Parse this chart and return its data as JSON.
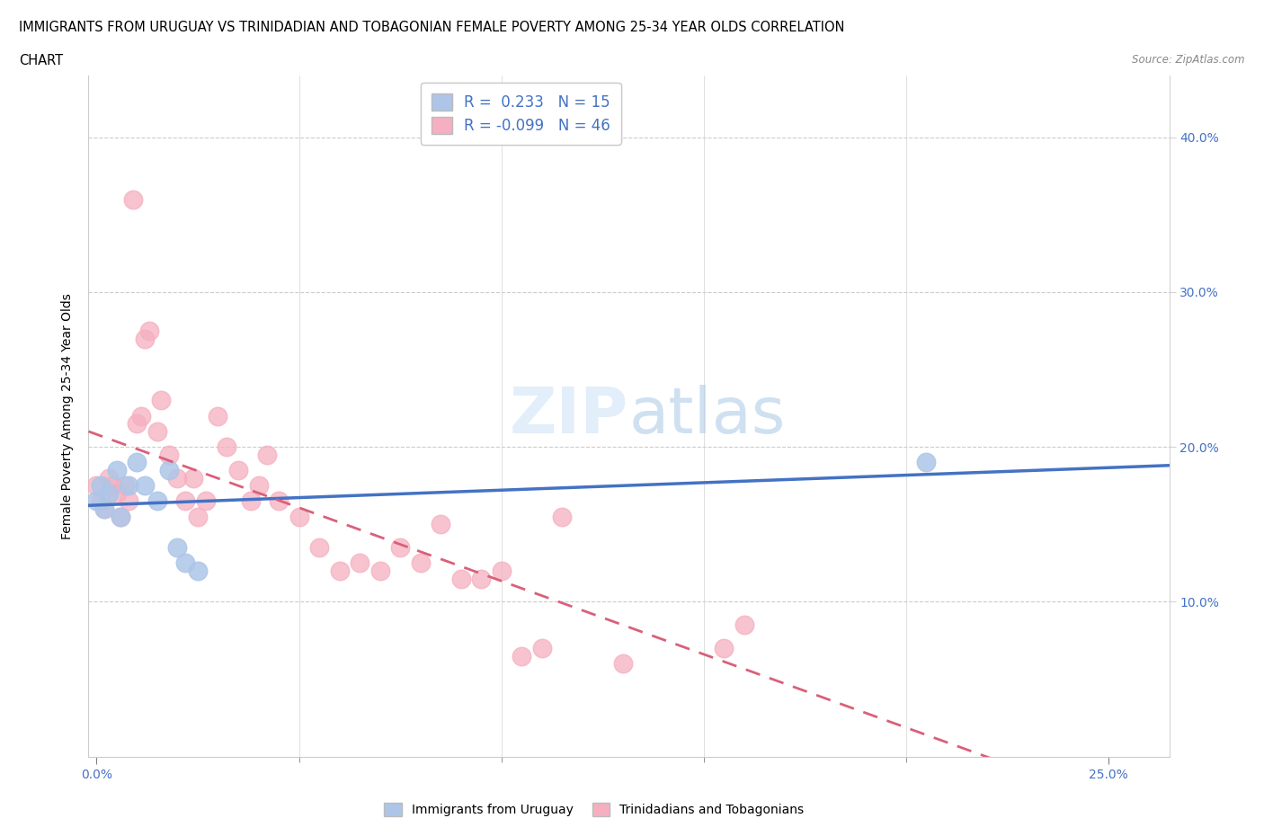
{
  "title_line1": "IMMIGRANTS FROM URUGUAY VS TRINIDADIAN AND TOBAGONIAN FEMALE POVERTY AMONG 25-34 YEAR OLDS CORRELATION",
  "title_line2": "CHART",
  "source_text": "Source: ZipAtlas.com",
  "ylabel": "Female Poverty Among 25-34 Year Olds",
  "xlim": [
    -0.002,
    0.265
  ],
  "ylim": [
    0.0,
    0.44
  ],
  "xlabel_major": [
    0.0,
    0.25
  ],
  "xlabel_major_labels": [
    "0.0%",
    "25.0%"
  ],
  "xlabel_minor": [
    0.05,
    0.1,
    0.15,
    0.2
  ],
  "ylabel_ticks": [
    0.1,
    0.2,
    0.3,
    0.4
  ],
  "ylabel_labels": [
    "10.0%",
    "20.0%",
    "30.0%",
    "40.0%"
  ],
  "r_uruguay": 0.233,
  "n_uruguay": 15,
  "r_trinidad": -0.099,
  "n_trinidad": 46,
  "color_uruguay": "#adc6e8",
  "color_trinidad": "#f5afc0",
  "line_color_uruguay": "#4472c4",
  "line_color_trinidad": "#d9607a",
  "scatter_uruguay_x": [
    0.0,
    0.001,
    0.002,
    0.003,
    0.005,
    0.006,
    0.008,
    0.01,
    0.012,
    0.015,
    0.018,
    0.02,
    0.022,
    0.025,
    0.205
  ],
  "scatter_uruguay_y": [
    0.165,
    0.175,
    0.16,
    0.17,
    0.185,
    0.155,
    0.175,
    0.19,
    0.175,
    0.165,
    0.185,
    0.135,
    0.125,
    0.12,
    0.19
  ],
  "scatter_trinidad_x": [
    0.0,
    0.001,
    0.002,
    0.003,
    0.004,
    0.005,
    0.006,
    0.007,
    0.008,
    0.009,
    0.01,
    0.011,
    0.012,
    0.013,
    0.015,
    0.016,
    0.018,
    0.02,
    0.022,
    0.024,
    0.025,
    0.027,
    0.03,
    0.032,
    0.035,
    0.038,
    0.04,
    0.042,
    0.045,
    0.05,
    0.055,
    0.06,
    0.065,
    0.07,
    0.075,
    0.08,
    0.085,
    0.09,
    0.095,
    0.1,
    0.105,
    0.11,
    0.115,
    0.13,
    0.155,
    0.16
  ],
  "scatter_trinidad_y": [
    0.175,
    0.165,
    0.16,
    0.18,
    0.175,
    0.17,
    0.155,
    0.175,
    0.165,
    0.36,
    0.215,
    0.22,
    0.27,
    0.275,
    0.21,
    0.23,
    0.195,
    0.18,
    0.165,
    0.18,
    0.155,
    0.165,
    0.22,
    0.2,
    0.185,
    0.165,
    0.175,
    0.195,
    0.165,
    0.155,
    0.135,
    0.12,
    0.125,
    0.12,
    0.135,
    0.125,
    0.15,
    0.115,
    0.115,
    0.12,
    0.065,
    0.07,
    0.155,
    0.06,
    0.07,
    0.085
  ]
}
